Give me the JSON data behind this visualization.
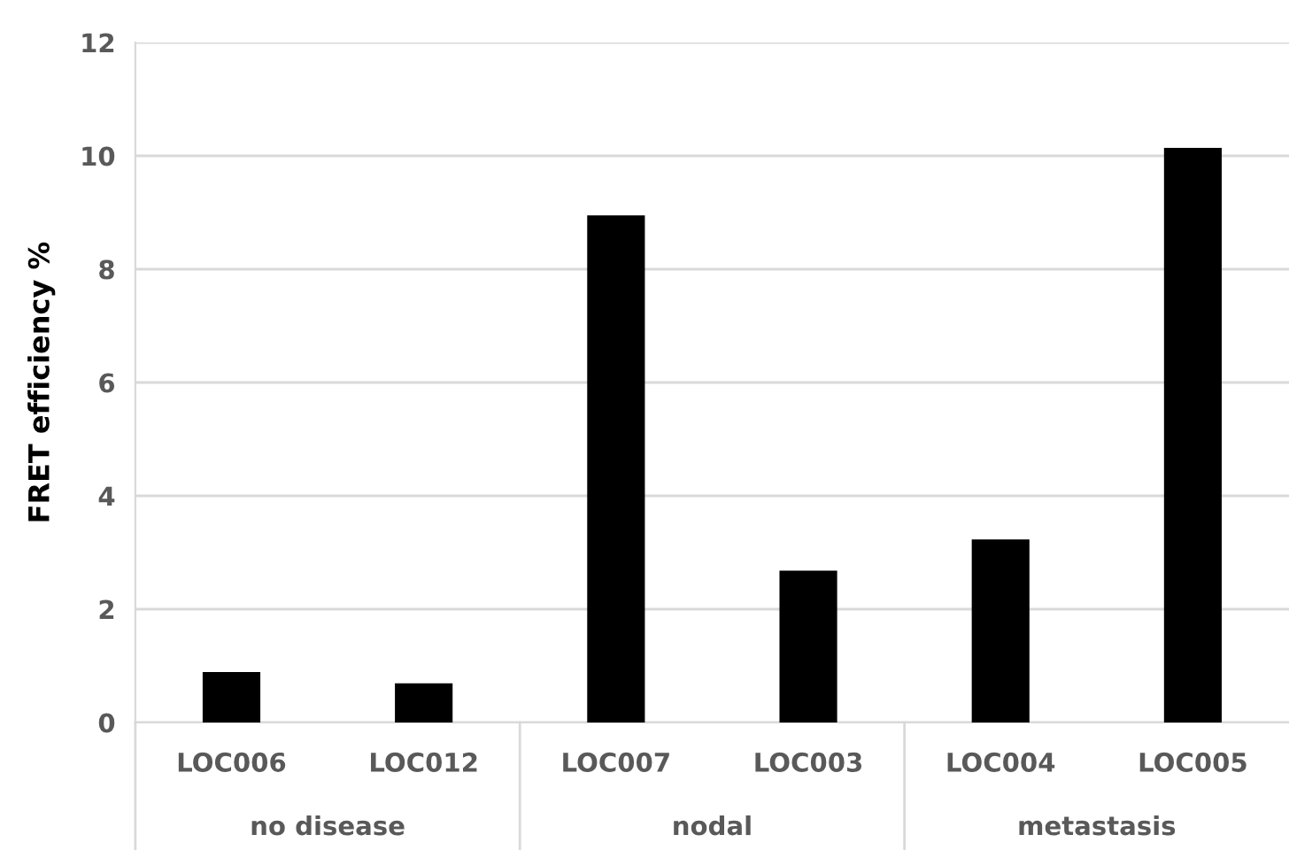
{
  "chart_data": {
    "type": "bar",
    "ylabel": "FRET efficiency %",
    "categories": [
      "LOC006",
      "LOC012",
      "LOC007",
      "LOC003",
      "LOC004",
      "LOC005"
    ],
    "values": [
      0.89,
      0.69,
      8.95,
      2.68,
      3.23,
      10.14
    ],
    "color": "#000000",
    "ylim": [
      0,
      12
    ],
    "yticks": [
      0,
      2,
      4,
      6,
      8,
      10,
      12
    ],
    "grid": "y",
    "annotations": [
      "no disease",
      "nodal",
      "metastasis"
    ]
  }
}
